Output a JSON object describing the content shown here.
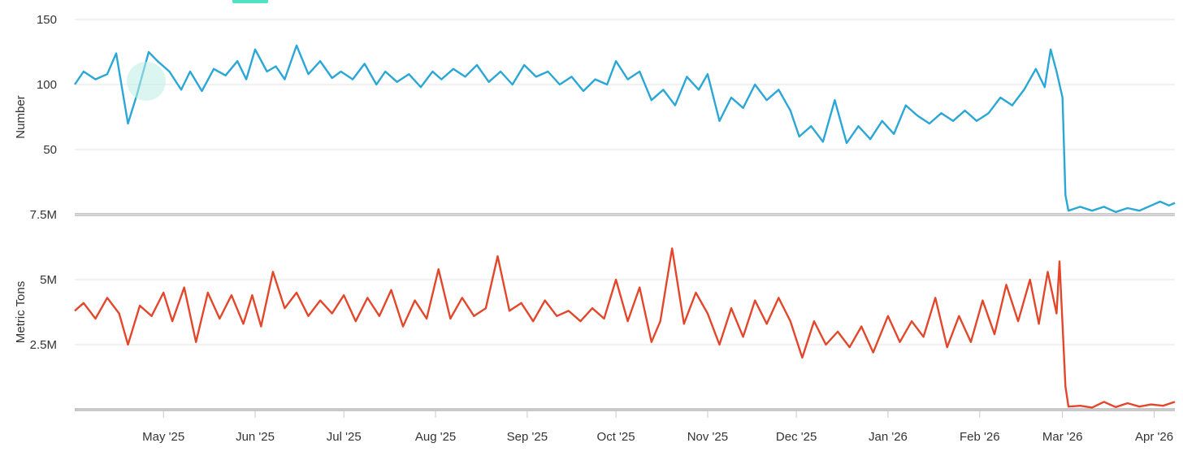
{
  "colors": {
    "vessels_line": "#2aa7d6",
    "tonnage_line": "#e3472b",
    "legend_chip": "#4fe3c4",
    "watermark": "#bdeee3"
  },
  "chart_data": [
    {
      "type": "line",
      "ylabel": "Number",
      "yticks": [
        "50",
        "100",
        "150"
      ],
      "ylim": [
        0,
        150
      ],
      "x_start": "2025-04-01",
      "x_end": "2026-04-08",
      "xticks": [
        "May '25",
        "Jun '25",
        "Jul '25",
        "Aug '25",
        "Sep '25",
        "Oct '25",
        "Nov '25",
        "Dec '25",
        "Jan '26",
        "Feb '26",
        "Mar '26",
        "Apr '26"
      ],
      "grid": true,
      "series": [
        {
          "color": "#2aa7d6",
          "points": [
            [
              "2025-04-01",
              100
            ],
            [
              "2025-04-04",
              110
            ],
            [
              "2025-04-08",
              104
            ],
            [
              "2025-04-12",
              108
            ],
            [
              "2025-04-15",
              124
            ],
            [
              "2025-04-19",
              70
            ],
            [
              "2025-04-22",
              92
            ],
            [
              "2025-04-26",
              125
            ],
            [
              "2025-04-29",
              118
            ],
            [
              "2025-05-03",
              110
            ],
            [
              "2025-05-07",
              96
            ],
            [
              "2025-05-10",
              110
            ],
            [
              "2025-05-14",
              95
            ],
            [
              "2025-05-18",
              112
            ],
            [
              "2025-05-22",
              107
            ],
            [
              "2025-05-26",
              118
            ],
            [
              "2025-05-29",
              104
            ],
            [
              "2025-06-01",
              127
            ],
            [
              "2025-06-05",
              110
            ],
            [
              "2025-06-08",
              114
            ],
            [
              "2025-06-11",
              104
            ],
            [
              "2025-06-15",
              130
            ],
            [
              "2025-06-19",
              108
            ],
            [
              "2025-06-23",
              118
            ],
            [
              "2025-06-27",
              105
            ],
            [
              "2025-06-30",
              110
            ],
            [
              "2025-07-04",
              104
            ],
            [
              "2025-07-08",
              116
            ],
            [
              "2025-07-12",
              100
            ],
            [
              "2025-07-15",
              110
            ],
            [
              "2025-07-19",
              102
            ],
            [
              "2025-07-23",
              108
            ],
            [
              "2025-07-27",
              98
            ],
            [
              "2025-07-31",
              110
            ],
            [
              "2025-08-03",
              104
            ],
            [
              "2025-08-07",
              112
            ],
            [
              "2025-08-11",
              106
            ],
            [
              "2025-08-15",
              115
            ],
            [
              "2025-08-19",
              102
            ],
            [
              "2025-08-23",
              110
            ],
            [
              "2025-08-27",
              100
            ],
            [
              "2025-08-31",
              115
            ],
            [
              "2025-09-04",
              106
            ],
            [
              "2025-09-08",
              110
            ],
            [
              "2025-09-12",
              100
            ],
            [
              "2025-09-16",
              106
            ],
            [
              "2025-09-20",
              95
            ],
            [
              "2025-09-24",
              104
            ],
            [
              "2025-09-28",
              100
            ],
            [
              "2025-10-01",
              118
            ],
            [
              "2025-10-05",
              104
            ],
            [
              "2025-10-09",
              110
            ],
            [
              "2025-10-13",
              88
            ],
            [
              "2025-10-17",
              96
            ],
            [
              "2025-10-21",
              84
            ],
            [
              "2025-10-25",
              106
            ],
            [
              "2025-10-29",
              96
            ],
            [
              "2025-11-01",
              108
            ],
            [
              "2025-11-05",
              72
            ],
            [
              "2025-11-09",
              90
            ],
            [
              "2025-11-13",
              82
            ],
            [
              "2025-11-17",
              100
            ],
            [
              "2025-11-21",
              88
            ],
            [
              "2025-11-25",
              96
            ],
            [
              "2025-11-29",
              80
            ],
            [
              "2025-12-02",
              60
            ],
            [
              "2025-12-06",
              68
            ],
            [
              "2025-12-10",
              56
            ],
            [
              "2025-12-14",
              88
            ],
            [
              "2025-12-18",
              55
            ],
            [
              "2025-12-22",
              68
            ],
            [
              "2025-12-26",
              58
            ],
            [
              "2025-12-30",
              72
            ],
            [
              "2026-01-03",
              62
            ],
            [
              "2026-01-07",
              84
            ],
            [
              "2026-01-11",
              76
            ],
            [
              "2026-01-15",
              70
            ],
            [
              "2026-01-19",
              78
            ],
            [
              "2026-01-23",
              72
            ],
            [
              "2026-01-27",
              80
            ],
            [
              "2026-01-31",
              72
            ],
            [
              "2026-02-04",
              78
            ],
            [
              "2026-02-08",
              90
            ],
            [
              "2026-02-12",
              84
            ],
            [
              "2026-02-16",
              96
            ],
            [
              "2026-02-20",
              112
            ],
            [
              "2026-02-23",
              98
            ],
            [
              "2026-02-25",
              127
            ],
            [
              "2026-02-27",
              110
            ],
            [
              "2026-03-01",
              90
            ],
            [
              "2026-03-02",
              15
            ],
            [
              "2026-03-03",
              3
            ],
            [
              "2026-03-07",
              6
            ],
            [
              "2026-03-11",
              3
            ],
            [
              "2026-03-15",
              6
            ],
            [
              "2026-03-19",
              2
            ],
            [
              "2026-03-23",
              5
            ],
            [
              "2026-03-27",
              3
            ],
            [
              "2026-03-31",
              7
            ],
            [
              "2026-04-03",
              10
            ],
            [
              "2026-04-06",
              7
            ],
            [
              "2026-04-08",
              9
            ]
          ]
        }
      ]
    },
    {
      "type": "line",
      "ylabel": "Metric Tons",
      "yticks": [
        "2.5M",
        "5M",
        "7.5M"
      ],
      "ylim": [
        0,
        7500000
      ],
      "x_start": "2025-04-01",
      "x_end": "2026-04-08",
      "grid": true,
      "series": [
        {
          "color": "#e3472b",
          "points": [
            [
              "2025-04-01",
              3800000
            ],
            [
              "2025-04-04",
              4100000
            ],
            [
              "2025-04-08",
              3500000
            ],
            [
              "2025-04-12",
              4300000
            ],
            [
              "2025-04-16",
              3700000
            ],
            [
              "2025-04-19",
              2500000
            ],
            [
              "2025-04-23",
              4000000
            ],
            [
              "2025-04-27",
              3600000
            ],
            [
              "2025-05-01",
              4500000
            ],
            [
              "2025-05-04",
              3400000
            ],
            [
              "2025-05-08",
              4700000
            ],
            [
              "2025-05-12",
              2600000
            ],
            [
              "2025-05-16",
              4500000
            ],
            [
              "2025-05-20",
              3500000
            ],
            [
              "2025-05-24",
              4400000
            ],
            [
              "2025-05-28",
              3300000
            ],
            [
              "2025-05-31",
              4400000
            ],
            [
              "2025-06-03",
              3200000
            ],
            [
              "2025-06-07",
              5300000
            ],
            [
              "2025-06-11",
              3900000
            ],
            [
              "2025-06-15",
              4500000
            ],
            [
              "2025-06-19",
              3600000
            ],
            [
              "2025-06-23",
              4200000
            ],
            [
              "2025-06-27",
              3700000
            ],
            [
              "2025-07-01",
              4400000
            ],
            [
              "2025-07-05",
              3400000
            ],
            [
              "2025-07-09",
              4300000
            ],
            [
              "2025-07-13",
              3600000
            ],
            [
              "2025-07-17",
              4600000
            ],
            [
              "2025-07-21",
              3200000
            ],
            [
              "2025-07-25",
              4200000
            ],
            [
              "2025-07-29",
              3500000
            ],
            [
              "2025-08-02",
              5400000
            ],
            [
              "2025-08-06",
              3500000
            ],
            [
              "2025-08-10",
              4300000
            ],
            [
              "2025-08-14",
              3600000
            ],
            [
              "2025-08-18",
              3900000
            ],
            [
              "2025-08-22",
              5900000
            ],
            [
              "2025-08-26",
              3800000
            ],
            [
              "2025-08-30",
              4100000
            ],
            [
              "2025-09-03",
              3400000
            ],
            [
              "2025-09-07",
              4200000
            ],
            [
              "2025-09-11",
              3600000
            ],
            [
              "2025-09-15",
              3800000
            ],
            [
              "2025-09-19",
              3400000
            ],
            [
              "2025-09-23",
              3900000
            ],
            [
              "2025-09-27",
              3500000
            ],
            [
              "2025-10-01",
              5000000
            ],
            [
              "2025-10-05",
              3400000
            ],
            [
              "2025-10-09",
              4700000
            ],
            [
              "2025-10-13",
              2600000
            ],
            [
              "2025-10-16",
              3400000
            ],
            [
              "2025-10-20",
              6200000
            ],
            [
              "2025-10-24",
              3300000
            ],
            [
              "2025-10-28",
              4500000
            ],
            [
              "2025-11-01",
              3700000
            ],
            [
              "2025-11-05",
              2500000
            ],
            [
              "2025-11-09",
              3900000
            ],
            [
              "2025-11-13",
              2800000
            ],
            [
              "2025-11-17",
              4200000
            ],
            [
              "2025-11-21",
              3300000
            ],
            [
              "2025-11-25",
              4300000
            ],
            [
              "2025-11-29",
              3400000
            ],
            [
              "2025-12-03",
              2000000
            ],
            [
              "2025-12-07",
              3400000
            ],
            [
              "2025-12-11",
              2500000
            ],
            [
              "2025-12-15",
              3000000
            ],
            [
              "2025-12-19",
              2400000
            ],
            [
              "2025-12-23",
              3200000
            ],
            [
              "2025-12-27",
              2200000
            ],
            [
              "2026-01-01",
              3600000
            ],
            [
              "2026-01-05",
              2600000
            ],
            [
              "2026-01-09",
              3400000
            ],
            [
              "2026-01-13",
              2800000
            ],
            [
              "2026-01-17",
              4300000
            ],
            [
              "2026-01-21",
              2400000
            ],
            [
              "2026-01-25",
              3600000
            ],
            [
              "2026-01-29",
              2600000
            ],
            [
              "2026-02-02",
              4200000
            ],
            [
              "2026-02-06",
              2900000
            ],
            [
              "2026-02-10",
              4800000
            ],
            [
              "2026-02-14",
              3400000
            ],
            [
              "2026-02-18",
              5000000
            ],
            [
              "2026-02-21",
              3300000
            ],
            [
              "2026-02-24",
              5300000
            ],
            [
              "2026-02-27",
              3700000
            ],
            [
              "2026-02-28",
              5700000
            ],
            [
              "2026-03-01",
              3300000
            ],
            [
              "2026-03-02",
              900000
            ],
            [
              "2026-03-03",
              120000
            ],
            [
              "2026-03-07",
              150000
            ],
            [
              "2026-03-11",
              80000
            ],
            [
              "2026-03-15",
              300000
            ],
            [
              "2026-03-19",
              100000
            ],
            [
              "2026-03-23",
              250000
            ],
            [
              "2026-03-27",
              120000
            ],
            [
              "2026-03-31",
              200000
            ],
            [
              "2026-04-04",
              150000
            ],
            [
              "2026-04-08",
              300000
            ]
          ]
        }
      ]
    }
  ]
}
